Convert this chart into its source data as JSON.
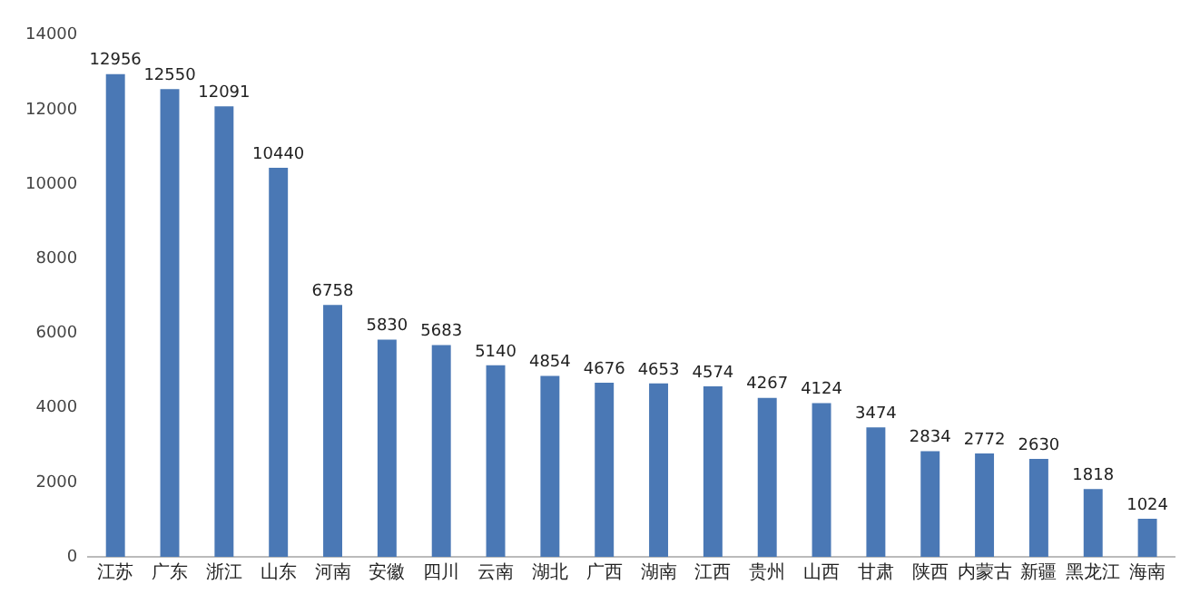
{
  "chart_data": {
    "type": "bar",
    "categories": [
      "江苏",
      "广东",
      "浙江",
      "山东",
      "河南",
      "安徽",
      "四川",
      "云南",
      "湖北",
      "广西",
      "湖南",
      "江西",
      "贵州",
      "山西",
      "甘肃",
      "陕西",
      "内蒙古",
      "新疆",
      "黑龙江",
      "海南"
    ],
    "values": [
      12956,
      12550,
      12091,
      10440,
      6758,
      5830,
      5683,
      5140,
      4854,
      4676,
      4653,
      4574,
      4267,
      4124,
      3474,
      2834,
      2772,
      2630,
      1818,
      1024
    ],
    "color": "#4a78b5",
    "ylim": [
      0,
      14000
    ],
    "yticks": [
      0,
      2000,
      4000,
      6000,
      8000,
      10000,
      12000,
      14000
    ],
    "data_labels": true,
    "legend": false,
    "grid": false
  }
}
